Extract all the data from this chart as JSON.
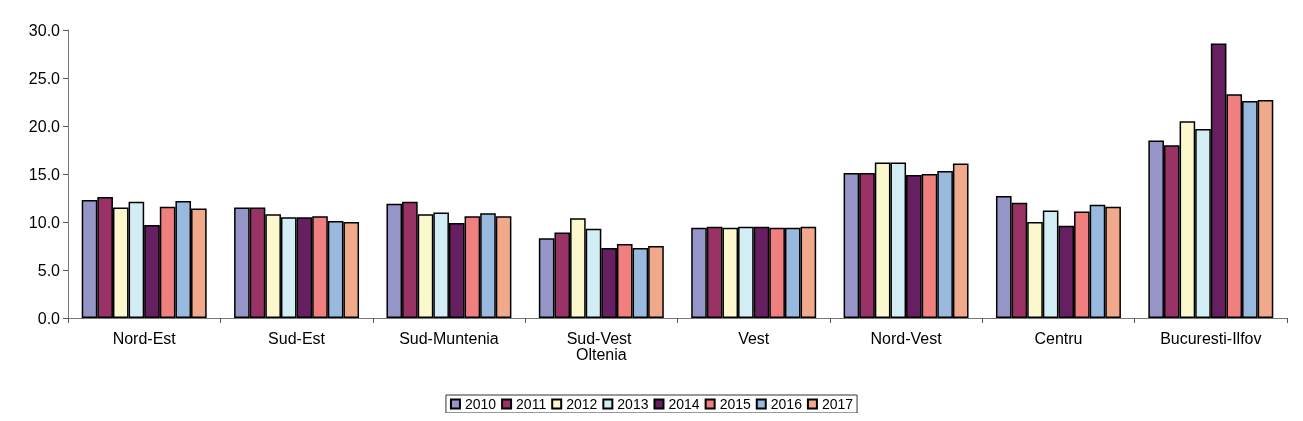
{
  "chart_data": {
    "type": "bar",
    "categories": [
      "Nord-Est",
      "Sud-Est",
      "Sud-Muntenia",
      "Sud-Vest Oltenia",
      "Vest",
      "Nord-Vest",
      "Centru",
      "Bucuresti-Ilfov"
    ],
    "series": [
      {
        "name": "2010",
        "color": "#9595c8",
        "values": [
          12.3,
          11.5,
          11.9,
          8.3,
          9.4,
          15.1,
          12.7,
          18.5
        ]
      },
      {
        "name": "2011",
        "color": "#993366",
        "values": [
          12.6,
          11.5,
          12.1,
          8.9,
          9.5,
          15.1,
          12.0,
          18.0
        ]
      },
      {
        "name": "2012",
        "color": "#fbf8cd",
        "values": [
          11.5,
          10.8,
          10.8,
          10.4,
          9.4,
          16.2,
          10.0,
          20.5
        ]
      },
      {
        "name": "2013",
        "color": "#d3edf4",
        "values": [
          12.1,
          10.5,
          11.0,
          9.3,
          9.5,
          16.2,
          11.2,
          19.7
        ]
      },
      {
        "name": "2014",
        "color": "#661f60",
        "values": [
          9.7,
          10.5,
          9.9,
          7.3,
          9.5,
          14.9,
          9.6,
          28.6
        ]
      },
      {
        "name": "2015",
        "color": "#f08080",
        "values": [
          11.6,
          10.6,
          10.6,
          7.7,
          9.4,
          15.0,
          11.1,
          23.3
        ]
      },
      {
        "name": "2016",
        "color": "#99b9df",
        "values": [
          12.2,
          10.1,
          10.9,
          7.3,
          9.4,
          15.3,
          11.8,
          22.6
        ]
      },
      {
        "name": "2017",
        "color": "#f0a98a",
        "values": [
          11.4,
          10.0,
          10.6,
          7.5,
          9.5,
          16.1,
          11.6,
          22.7
        ]
      }
    ],
    "ylim": [
      0,
      30
    ],
    "yticks": [
      {
        "value": 0,
        "label": "0.0"
      },
      {
        "value": 5,
        "label": "5.0"
      },
      {
        "value": 10,
        "label": "10.0"
      },
      {
        "value": 15,
        "label": "15.0"
      },
      {
        "value": 20,
        "label": "20.0"
      },
      {
        "value": 25,
        "label": "25.0"
      },
      {
        "value": 30,
        "label": "30.0"
      }
    ],
    "grid": false,
    "legend": "bottom"
  }
}
